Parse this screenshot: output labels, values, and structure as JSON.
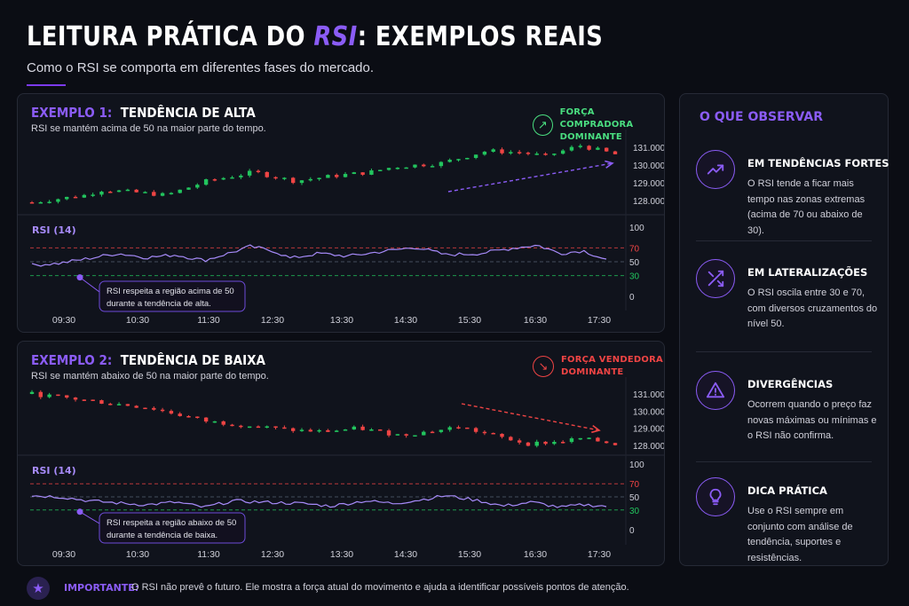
{
  "page": {
    "title_pre": "LEITURA PRÁTICA DO ",
    "title_hl": "RSI",
    "title_post": ": EXEMPLOS REAIS",
    "subtitle": "Como o RSI se comporta em diferentes fases do mercado."
  },
  "colors": {
    "accent": "#8b5cf6",
    "up": "#22c55e",
    "down": "#ef4444",
    "rsi_line": "#a78bfa",
    "level_70": "#ef4444",
    "level_30": "#22c55e"
  },
  "examples": [
    {
      "num": "EXEMPLO 1:",
      "title": "TENDÊNCIA DE ALTA",
      "desc": "RSI se mantém acima de 50 na maior parte do tempo.",
      "force_line1": "FORÇA COMPRADORA",
      "force_line2": "DOMINANTE",
      "force_icon": "arrow-up-right-icon",
      "rsi_label": "RSI (14)",
      "note_line1": "RSI respeita a região acima de 50",
      "note_line2": "durante a tendência de alta."
    },
    {
      "num": "EXEMPLO 2:",
      "title": "TENDÊNCIA DE BAIXA",
      "desc": "RSI se mantém abaixo de 50 na maior parte do tempo.",
      "force_line1": "FORÇA VENDEDORA",
      "force_line2": "DOMINANTE",
      "force_icon": "arrow-down-right-icon",
      "rsi_label": "RSI (14)",
      "note_line1": "RSI respeita a região abaixo de 50",
      "note_line2": "durante a tendência de baixa."
    }
  ],
  "sidebar": {
    "title": "O QUE OBSERVAR",
    "tips": [
      {
        "icon": "trending-up-icon",
        "title": "EM TENDÊNCIAS FORTES",
        "text": "O RSI tende a ficar mais tempo nas zonas extremas (acima de 70 ou abaixo de 30)."
      },
      {
        "icon": "shuffle-icon",
        "title": "EM LATERALIZAÇÕES",
        "text": "O RSI oscila entre 30 e 70, com diversos cruzamentos do nível 50."
      },
      {
        "icon": "warning-icon",
        "title": "DIVERGÊNCIAS",
        "text": "Ocorrem quando o preço faz novas máximas ou mínimas e o RSI não confirma."
      },
      {
        "icon": "lightbulb-icon",
        "title": "DICA PRÁTICA",
        "text": "Use o RSI sempre em conjunto com análise de tendência, suportes e resistências."
      }
    ]
  },
  "footer": {
    "label": "IMPORTANTE:",
    "text": "O RSI não prevê o futuro. Ele mostra a força atual do movimento e ajuda a identificar possíveis pontos de atenção.",
    "icon": "star-icon"
  },
  "chart_data": [
    {
      "type": "candlestick",
      "title": "EXEMPLO 1: TENDÊNCIA DE ALTA",
      "price_ticks": [
        "131.000",
        "130.000",
        "129.000",
        "128.000"
      ],
      "price_range": [
        127.5,
        131.5
      ],
      "price_trend": {
        "start": 127.9,
        "end": 130.6,
        "wave_points": [
          [
            0,
            127.9
          ],
          [
            0.09,
            128.3
          ],
          [
            0.12,
            128.6
          ],
          [
            0.2,
            128.4
          ],
          [
            0.23,
            128.3
          ],
          [
            0.3,
            129.1
          ],
          [
            0.38,
            129.6
          ],
          [
            0.45,
            129.1
          ],
          [
            0.52,
            129.4
          ],
          [
            0.58,
            129.6
          ],
          [
            0.62,
            129.9
          ],
          [
            0.7,
            130.1
          ],
          [
            0.78,
            130.8
          ],
          [
            0.84,
            130.7
          ],
          [
            0.88,
            130.5
          ],
          [
            0.94,
            131.1
          ],
          [
            1,
            130.6
          ]
        ]
      },
      "x_ticks": [
        "09:30",
        "10:30",
        "11:30",
        "12:30",
        "13:30",
        "14:30",
        "15:30",
        "16:30",
        "17:30"
      ],
      "rsi": {
        "name": "RSI (14)",
        "ticks": [
          "100",
          "70",
          "50",
          "30",
          "0"
        ],
        "range": [
          0,
          100
        ],
        "levels": [
          70,
          50,
          30
        ],
        "trend": "above-50",
        "wave_points": [
          [
            0,
            45
          ],
          [
            0.05,
            48
          ],
          [
            0.1,
            55
          ],
          [
            0.15,
            62
          ],
          [
            0.2,
            56
          ],
          [
            0.25,
            60
          ],
          [
            0.3,
            52
          ],
          [
            0.35,
            64
          ],
          [
            0.38,
            72
          ],
          [
            0.42,
            66
          ],
          [
            0.45,
            55
          ],
          [
            0.5,
            62
          ],
          [
            0.55,
            58
          ],
          [
            0.62,
            66
          ],
          [
            0.67,
            71
          ],
          [
            0.72,
            60
          ],
          [
            0.78,
            62
          ],
          [
            0.84,
            70
          ],
          [
            0.88,
            74
          ],
          [
            0.92,
            62
          ],
          [
            0.96,
            66
          ],
          [
            1,
            53
          ]
        ]
      }
    },
    {
      "type": "candlestick",
      "title": "EXEMPLO 2: TENDÊNCIA DE BAIXA",
      "price_ticks": [
        "131.000",
        "130.000",
        "129.000",
        "128.000"
      ],
      "price_range": [
        127.5,
        131.5
      ],
      "price_trend": {
        "start": 131.0,
        "end": 128.1,
        "wave_points": [
          [
            0,
            131.0
          ],
          [
            0.1,
            130.6
          ],
          [
            0.2,
            130.2
          ],
          [
            0.3,
            129.4
          ],
          [
            0.36,
            129.2
          ],
          [
            0.44,
            128.9
          ],
          [
            0.5,
            128.8
          ],
          [
            0.56,
            129.0
          ],
          [
            0.63,
            128.6
          ],
          [
            0.7,
            128.9
          ],
          [
            0.73,
            129.1
          ],
          [
            0.8,
            128.5
          ],
          [
            0.85,
            128.1
          ],
          [
            0.9,
            128.2
          ],
          [
            0.94,
            128.4
          ],
          [
            1,
            128.1
          ]
        ]
      },
      "x_ticks": [
        "09:30",
        "10:30",
        "11:30",
        "12:30",
        "13:30",
        "14:30",
        "15:30",
        "16:30",
        "17:30"
      ],
      "rsi": {
        "name": "RSI (14)",
        "ticks": [
          "100",
          "70",
          "50",
          "30",
          "0"
        ],
        "range": [
          0,
          100
        ],
        "levels": [
          70,
          50,
          30
        ],
        "trend": "below-50",
        "wave_points": [
          [
            0,
            52
          ],
          [
            0.05,
            50
          ],
          [
            0.1,
            44
          ],
          [
            0.16,
            40
          ],
          [
            0.2,
            38
          ],
          [
            0.25,
            42
          ],
          [
            0.3,
            34
          ],
          [
            0.35,
            44
          ],
          [
            0.4,
            42
          ],
          [
            0.47,
            40
          ],
          [
            0.52,
            36
          ],
          [
            0.58,
            44
          ],
          [
            0.63,
            40
          ],
          [
            0.68,
            46
          ],
          [
            0.72,
            52
          ],
          [
            0.78,
            44
          ],
          [
            0.82,
            36
          ],
          [
            0.87,
            42
          ],
          [
            0.92,
            34
          ],
          [
            0.96,
            38
          ],
          [
            1,
            36
          ]
        ]
      }
    }
  ]
}
